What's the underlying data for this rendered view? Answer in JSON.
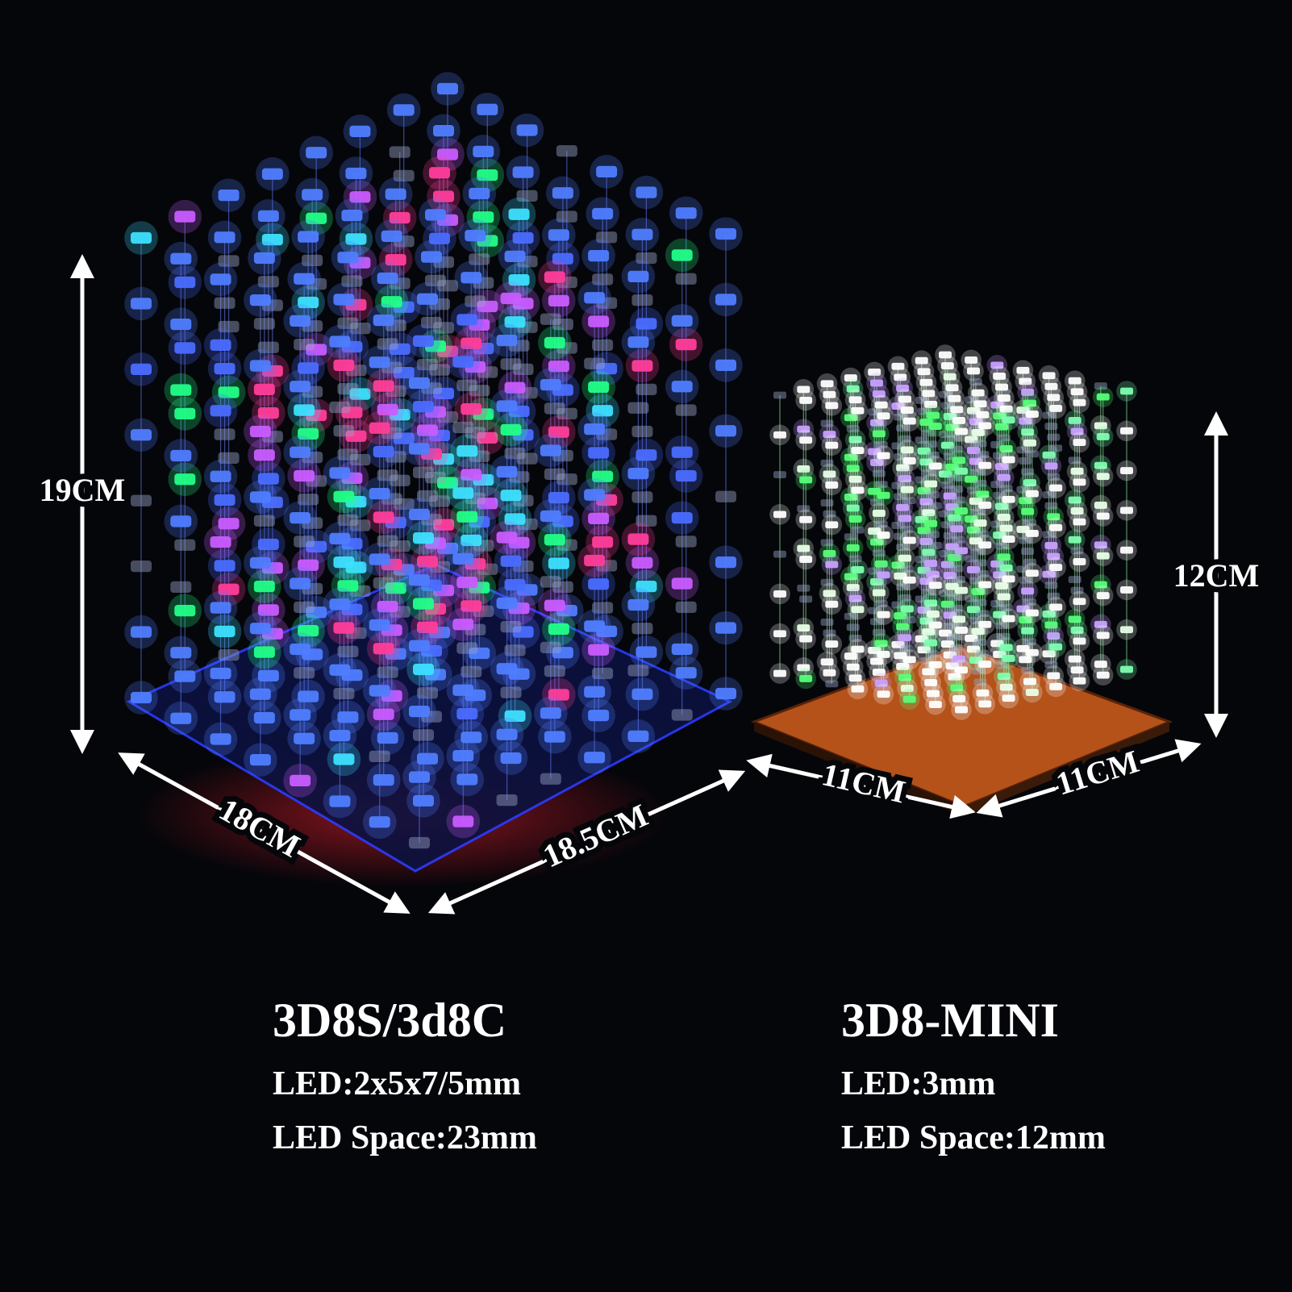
{
  "large_cube": {
    "height": "19CM",
    "width": "18CM",
    "depth": "18.5CM",
    "model": "3D8S/3d8C",
    "led": "LED:2x5x7/5mm",
    "spacing": "LED Space:23mm"
  },
  "mini_cube": {
    "height": "12CM",
    "width": "11CM",
    "depth": "11CM",
    "model": "3D8-MINI",
    "led": "LED:3mm",
    "spacing": "LED Space:12mm"
  }
}
